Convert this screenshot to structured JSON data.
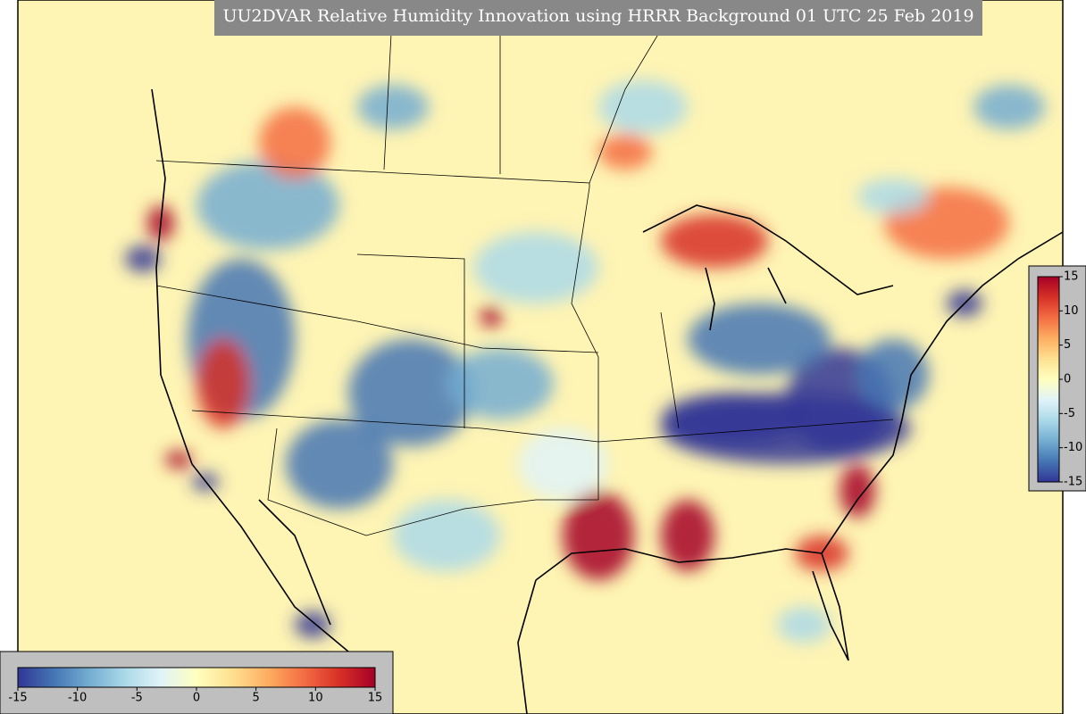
{
  "title": "UU2DVAR Relative Humidity Innovation using HRRR Background 01 UTC 25 Feb 2019",
  "colormap": [
    "#313695",
    "#4575b4",
    "#74add1",
    "#abd9e9",
    "#e0f3f8",
    "#ffffbf",
    "#fee090",
    "#fdae61",
    "#f46d43",
    "#d73027",
    "#a50026"
  ],
  "colorbars": [
    {
      "orientation": "horizontal",
      "lim": [
        -15,
        15
      ],
      "ticks": [
        -15,
        -10,
        -5,
        0,
        5,
        10,
        15
      ]
    },
    {
      "orientation": "vertical",
      "lim": [
        -15,
        15
      ],
      "ticks": [
        -15,
        -10,
        -5,
        0,
        5,
        10,
        15
      ]
    }
  ]
}
